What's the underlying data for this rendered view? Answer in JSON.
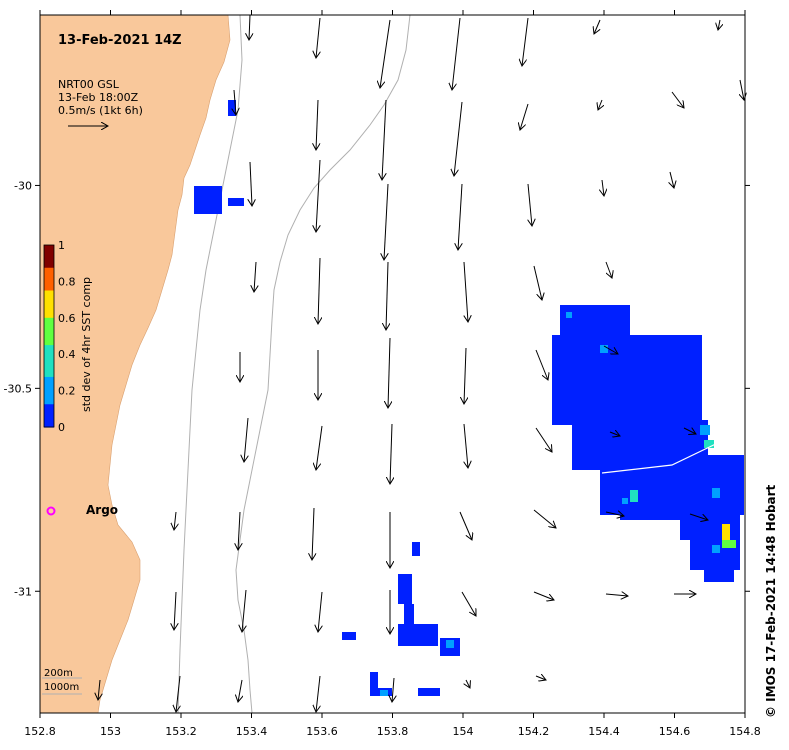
{
  "title": "13-Feb-2021 14Z",
  "legend": {
    "line1": "NRT00 GSL",
    "line2": "13-Feb 18:00Z",
    "line3": "0.5m/s (1kt 6h)"
  },
  "colorbar": {
    "label": "std dev of 4hr SST comp",
    "ticks": [
      "0",
      "0.2",
      "0.4",
      "0.6",
      "0.8",
      "1"
    ]
  },
  "argo_label": "Argo",
  "depth_labels": [
    "200m",
    "1000m"
  ],
  "credit": "© IMOS 17-Feb-2021 14:48 Hobart",
  "axes": {
    "x_ticks": [
      "152.8",
      "153",
      "153.2",
      "153.4",
      "153.6",
      "153.8",
      "154",
      "154.2",
      "154.4",
      "154.6",
      "154.8"
    ],
    "y_ticks": [
      "-30",
      "-30.5",
      "-31"
    ],
    "xlim": [
      152.8,
      154.8
    ],
    "ylim": [
      -31.3,
      -29.58
    ]
  },
  "colors": {
    "land": "#f9c89b",
    "contour": "#b0b0b0",
    "sst_low": "#00007f",
    "argo": "#ff00ff"
  },
  "currents_grid": {
    "lon": [
      153.0,
      153.2,
      153.4,
      153.6,
      153.8,
      154.0,
      154.2,
      154.4,
      154.6,
      154.8
    ],
    "lat": [
      -29.6,
      -29.75,
      -29.9,
      -30.1,
      -30.25,
      -30.4,
      -30.55,
      -30.7,
      -30.85,
      -31.0,
      -31.15,
      -31.25
    ],
    "note_units": "m/s"
  }
}
